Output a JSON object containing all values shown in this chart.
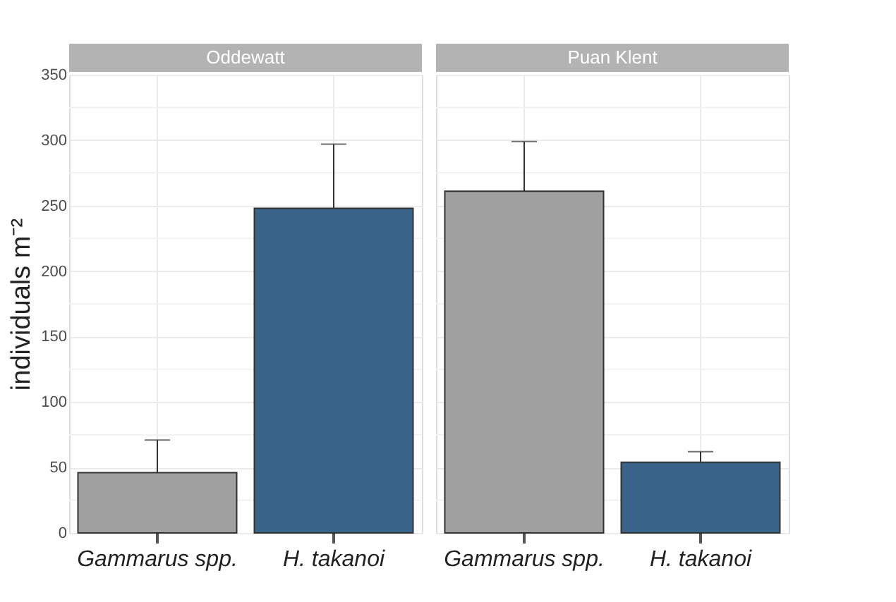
{
  "chart_data": [
    {
      "type": "bar",
      "title": "Oddewatt",
      "ylabel": "individuals m⁻²",
      "categories": [
        "Gammarus spp.",
        "H. takanoi"
      ],
      "values": [
        46,
        248
      ],
      "colors": [
        "#a0a0a0",
        "#3a6389"
      ],
      "errors": [
        [
          46,
          71
        ],
        [
          248,
          297
        ]
      ],
      "ylim": [
        0,
        350
      ],
      "yticks": [
        0,
        {
          "value": 25,
          "label": null
        },
        50,
        {
          "value": 75,
          "label": null
        },
        100,
        {
          "value": 125,
          "label": null
        },
        150,
        {
          "value": 175,
          "label": null
        },
        200,
        {
          "value": 225,
          "label": null
        },
        250,
        {
          "value": 275,
          "label": null
        },
        300,
        {
          "value": 325,
          "label": null
        },
        350
      ],
      "grid": true
    },
    {
      "type": "bar",
      "title": "Puan Klent",
      "categories": [
        "Gammarus spp.",
        "H. takanoi"
      ],
      "values": [
        261,
        54
      ],
      "colors": [
        "#a0a0a0",
        "#3a6389"
      ],
      "errors": [
        [
          261,
          299
        ],
        [
          54,
          62
        ]
      ],
      "ylim": [
        0,
        350
      ],
      "yticks": [
        0,
        {
          "value": 25,
          "label": null
        },
        50,
        {
          "value": 75,
          "label": null
        },
        100,
        {
          "value": 125,
          "label": null
        },
        150,
        {
          "value": 175,
          "label": null
        },
        200,
        {
          "value": 225,
          "label": null
        },
        250,
        {
          "value": 275,
          "label": null
        },
        300,
        {
          "value": 325,
          "label": null
        },
        350
      ],
      "grid": true,
      "tick_labels": "x"
    }
  ]
}
